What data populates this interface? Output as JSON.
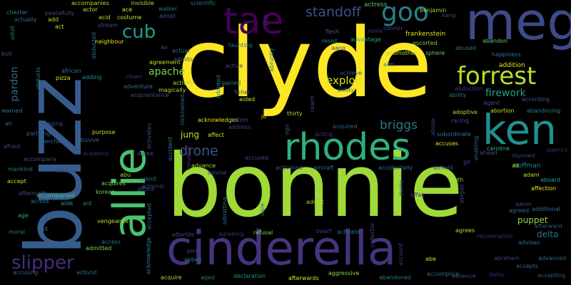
{
  "words": [
    {
      "text": "clyde",
      "color": "#fde725"
    },
    {
      "text": "bonnie",
      "color": "#a0da39"
    },
    {
      "text": "buzz",
      "color": "#365c8d"
    },
    {
      "text": "meg",
      "color": "#3e4a89"
    },
    {
      "text": "cinderella",
      "color": "#46337e"
    },
    {
      "text": "allie",
      "color": "#4ac16d"
    },
    {
      "text": "tae",
      "color": "#440154"
    },
    {
      "text": "ken",
      "color": "#21908d"
    },
    {
      "text": "rhodes",
      "color": "#2db27d"
    },
    {
      "text": "forrest",
      "color": "#b5de2b"
    },
    {
      "text": "goo",
      "color": "#277f8e"
    },
    {
      "text": "slipper",
      "color": "#472d7b"
    },
    {
      "text": "cub",
      "color": "#1f9e89"
    },
    {
      "text": "drone",
      "color": "#3b528b"
    },
    {
      "text": "standoff",
      "color": "#3b528b"
    },
    {
      "text": "apache",
      "color": "#7ad151"
    },
    {
      "text": "briggs",
      "color": "#2a788e"
    },
    {
      "text": "exploit",
      "color": "#dce319"
    },
    {
      "text": "firework",
      "color": "#1fa187"
    },
    {
      "text": "pardon",
      "color": "#31688e"
    },
    {
      "text": "jung",
      "color": "#c2df23"
    },
    {
      "text": "puppet",
      "color": "#8fd744"
    },
    {
      "text": "delta",
      "color": "#2a788e"
    },
    {
      "text": "actress",
      "color": "#5ec962"
    },
    {
      "text": "benjamin",
      "color": "#9fda3a"
    },
    {
      "text": "kang",
      "color": "#3e4989"
    },
    {
      "text": "frankenstein",
      "color": "#e5e419"
    },
    {
      "text": "escorted",
      "color": "#75d054"
    },
    {
      "text": "godmother",
      "color": "#b8de29"
    },
    {
      "text": "sphere",
      "color": "#5ec962"
    },
    {
      "text": "abused",
      "color": "#2c728e"
    },
    {
      "text": "abandon",
      "color": "#6ccd5a"
    },
    {
      "text": "connor",
      "color": "#404688"
    },
    {
      "text": "sadie",
      "color": "#472c7a"
    },
    {
      "text": "flesh",
      "color": "#34618d"
    },
    {
      "text": "resist",
      "color": "#26828e"
    },
    {
      "text": "advantage",
      "color": "#22a785"
    },
    {
      "text": "aang",
      "color": "#3e4c8a"
    },
    {
      "text": "aim",
      "color": "#26828e"
    },
    {
      "text": "happiness",
      "color": "#2a788e"
    },
    {
      "text": "addition",
      "color": "#e5e419"
    },
    {
      "text": "achieve",
      "color": "#38588c"
    },
    {
      "text": "abduction",
      "color": "#46337e"
    },
    {
      "text": "ability",
      "color": "#2d708e"
    },
    {
      "text": "agent",
      "color": "#3d4d8a"
    },
    {
      "text": "according",
      "color": "#38588c"
    },
    {
      "text": "abortion",
      "color": "#c0df25"
    },
    {
      "text": "abandoning",
      "color": "#26818e"
    },
    {
      "text": "adoptive",
      "color": "#b2dd2d"
    },
    {
      "text": "racing",
      "color": "#3d4e8a"
    },
    {
      "text": "subordinate",
      "color": "#297a8e"
    },
    {
      "text": "accuses",
      "color": "#e2e418"
    },
    {
      "text": "caroline",
      "color": "#34b679"
    },
    {
      "text": "ahead",
      "color": "#3e4a89"
    },
    {
      "text": "stunned",
      "color": "#3f4788"
    },
    {
      "text": "agency",
      "color": "#482374"
    },
    {
      "text": "hoffman",
      "color": "#228c8d"
    },
    {
      "text": "aboard",
      "color": "#22a884"
    },
    {
      "text": "adam",
      "color": "#c2df23"
    },
    {
      "text": "affection",
      "color": "#e7e419"
    },
    {
      "text": "additional",
      "color": "#2c728e"
    },
    {
      "text": "agreed",
      "color": "#31688e"
    },
    {
      "text": "afterward",
      "color": "#3b528b"
    },
    {
      "text": "advises",
      "color": "#2e6f8e"
    },
    {
      "text": "agrees",
      "color": "#b5de2b"
    },
    {
      "text": "rejuvenation",
      "color": "#472f7d"
    },
    {
      "text": "advanced",
      "color": "#31688e"
    },
    {
      "text": "abraham",
      "color": "#433e85"
    },
    {
      "text": "accepts",
      "color": "#31688e"
    },
    {
      "text": "accepting",
      "color": "#3b528b"
    },
    {
      "text": "daisy",
      "color": "#482575"
    },
    {
      "text": "absence",
      "color": "#414487"
    },
    {
      "text": "accomplice",
      "color": "#2c728e"
    },
    {
      "text": "abe",
      "color": "#c8e020"
    },
    {
      "text": "abandoned",
      "color": "#2a788e"
    },
    {
      "text": "aggressive",
      "color": "#8bd646"
    },
    {
      "text": "afterwards",
      "color": "#d8e219"
    },
    {
      "text": "declaration",
      "color": "#21918c"
    },
    {
      "text": "aged",
      "color": "#2c728e"
    },
    {
      "text": "acquire",
      "color": "#a8db34"
    },
    {
      "text": "abbey",
      "color": "#2c728e"
    },
    {
      "text": "pink",
      "color": "#3e4a89"
    },
    {
      "text": "refusal",
      "color": "#81d34d"
    },
    {
      "text": "agreeing",
      "color": "#472c7a"
    },
    {
      "text": "afterlife",
      "color": "#424186"
    },
    {
      "text": "dwarf",
      "color": "#453882"
    },
    {
      "text": "activate",
      "color": "#2e6e8e"
    },
    {
      "text": "collector",
      "color": "#3e4a89"
    },
    {
      "text": "account",
      "color": "#443a83"
    },
    {
      "text": "addict",
      "color": "#9fda3a"
    },
    {
      "text": "dare",
      "color": "#31688e"
    },
    {
      "text": "admitting",
      "color": "#2e6e8e"
    },
    {
      "text": "accepted",
      "color": "#2d708e"
    },
    {
      "text": "admiral",
      "color": "#443b84"
    },
    {
      "text": "advance",
      "color": "#a5db36"
    },
    {
      "text": "advice",
      "color": "#3e4a89"
    },
    {
      "text": "valuable",
      "color": "#46327e"
    },
    {
      "text": "accident",
      "color": "#2a788e"
    },
    {
      "text": "activates",
      "color": "#3b528b"
    },
    {
      "text": "accused",
      "color": "#3e4a89"
    },
    {
      "text": "academy",
      "color": "#482677"
    },
    {
      "text": "afford",
      "color": "#3b528b"
    },
    {
      "text": "acquires",
      "color": "#7fd34e"
    },
    {
      "text": "agree",
      "color": "#3e4a89"
    },
    {
      "text": "admit",
      "color": "#2c728e"
    },
    {
      "text": "abu",
      "color": "#a2da37"
    },
    {
      "text": "korean",
      "color": "#6ccd5a"
    },
    {
      "text": "aid",
      "color": "#297b8e"
    },
    {
      "text": "aide",
      "color": "#1f9e89"
    },
    {
      "text": "vengeance",
      "color": "#b8de29"
    },
    {
      "text": "access",
      "color": "#2c728e"
    },
    {
      "text": "admitted",
      "color": "#81d34d"
    },
    {
      "text": "activist",
      "color": "#2c728e"
    },
    {
      "text": "acknowledge",
      "color": "#277f8e"
    },
    {
      "text": "salt",
      "color": "#34618d"
    },
    {
      "text": "moral",
      "color": "#2c728e"
    },
    {
      "text": "age",
      "color": "#22a785"
    },
    {
      "text": "aftermath",
      "color": "#3e4a89"
    },
    {
      "text": "accusing",
      "color": "#34618d"
    },
    {
      "text": "accompanied",
      "color": "#4ac16d"
    },
    {
      "text": "across",
      "color": "#297b8e"
    },
    {
      "text": "accept",
      "color": "#c8e020"
    },
    {
      "text": "abby",
      "color": "#414487"
    },
    {
      "text": "mankind",
      "color": "#297b8e"
    },
    {
      "text": "accompany",
      "color": "#3b528b"
    },
    {
      "text": "afraid",
      "color": "#414487"
    },
    {
      "text": "abusive",
      "color": "#2d708e"
    },
    {
      "text": "merchant",
      "color": "#31688e"
    },
    {
      "text": "purpose",
      "color": "#c8e020"
    },
    {
      "text": "partying",
      "color": "#34618d"
    },
    {
      "text": "aging",
      "color": "#3b528b"
    },
    {
      "text": "an",
      "color": "#31688e"
    },
    {
      "text": "warned",
      "color": "#2a788e"
    },
    {
      "text": "abducts",
      "color": "#297b8e"
    },
    {
      "text": "bull",
      "color": "#3b528b"
    },
    {
      "text": "pizza",
      "color": "#d8e219"
    },
    {
      "text": "adding",
      "color": "#21918c"
    },
    {
      "text": "african",
      "color": "#2c728e"
    },
    {
      "text": "abducted",
      "color": "#2c728e"
    },
    {
      "text": "neighbour",
      "color": "#e5e419"
    },
    {
      "text": "adventure",
      "color": "#2d708e"
    },
    {
      "text": "acquaintance",
      "color": "#3e4a89"
    },
    {
      "text": "clown",
      "color": "#46327e"
    },
    {
      "text": "magically",
      "color": "#b5de2b"
    },
    {
      "text": "activity",
      "color": "#a8db34"
    },
    {
      "text": "agreement",
      "color": "#c8e020"
    },
    {
      "text": "admits",
      "color": "#3b528b"
    },
    {
      "text": "actual",
      "color": "#2c728e"
    },
    {
      "text": "air",
      "color": "#3e4a89"
    },
    {
      "text": "adopted",
      "color": "#2a788e"
    },
    {
      "text": "gained",
      "color": "#2a788e"
    },
    {
      "text": "active",
      "color": "#3e4a89"
    },
    {
      "text": "fisher",
      "color": "#3b528b"
    },
    {
      "text": "aided",
      "color": "#c8e020"
    },
    {
      "text": "abruptly",
      "color": "#2c728e"
    },
    {
      "text": "taunting",
      "color": "#2c728e"
    },
    {
      "text": "entity",
      "color": "#2c728e"
    },
    {
      "text": "acknowledges",
      "color": "#e5e419"
    },
    {
      "text": "nicknamed",
      "color": "#2c728e"
    },
    {
      "text": "affect",
      "color": "#c8e020"
    },
    {
      "text": "action",
      "color": "#3b528b"
    },
    {
      "text": "address",
      "color": "#414487"
    },
    {
      "text": "jo",
      "color": "#d8e219"
    },
    {
      "text": "thirty",
      "color": "#a8db34"
    },
    {
      "text": "coach",
      "color": "#3b528b"
    },
    {
      "text": "ago",
      "color": "#3b528b"
    },
    {
      "text": "acquired",
      "color": "#34618d"
    },
    {
      "text": "acting",
      "color": "#46327e"
    },
    {
      "text": "activated",
      "color": "#3b528b"
    },
    {
      "text": "aircraft",
      "color": "#2c728e"
    },
    {
      "text": "accidentally",
      "color": "#2c728e"
    },
    {
      "text": "marie",
      "color": "#3b528b"
    },
    {
      "text": "affair",
      "color": "#46327e"
    },
    {
      "text": "airfield",
      "color": "#3b528b"
    },
    {
      "text": "abigail",
      "color": "#3e4a89"
    },
    {
      "text": "tooth",
      "color": "#a8db34"
    },
    {
      "text": "gil",
      "color": "#414487"
    },
    {
      "text": "ad",
      "color": "#b5de2b"
    },
    {
      "text": "abuse",
      "color": "#3e4a89"
    },
    {
      "text": "enabling",
      "color": "#34618d"
    },
    {
      "text": "aaron",
      "color": "#3e4a89"
    },
    {
      "text": "accompanies",
      "color": "#b5de2b"
    },
    {
      "text": "invisible",
      "color": "#a8db34"
    },
    {
      "text": "walker",
      "color": "#2c728e"
    },
    {
      "text": "scientific",
      "color": "#2c728e"
    },
    {
      "text": "peacefully",
      "color": "#3e4a89"
    },
    {
      "text": "actor",
      "color": "#c8e020"
    },
    {
      "text": "ace",
      "color": "#e5e419"
    },
    {
      "text": "adopt",
      "color": "#3b528b"
    },
    {
      "text": "chester",
      "color": "#2a788e"
    },
    {
      "text": "actually",
      "color": "#2c728e"
    },
    {
      "text": "add",
      "color": "#b5de2b"
    },
    {
      "text": "acid",
      "color": "#b5de2b"
    },
    {
      "text": "costume",
      "color": "#c8e020"
    },
    {
      "text": "act",
      "color": "#c8e020"
    },
    {
      "text": "stream",
      "color": "#3e4a89"
    },
    {
      "text": "adult",
      "color": "#2c728e"
    },
    {
      "text": "rich",
      "color": "#46327e"
    }
  ]
}
